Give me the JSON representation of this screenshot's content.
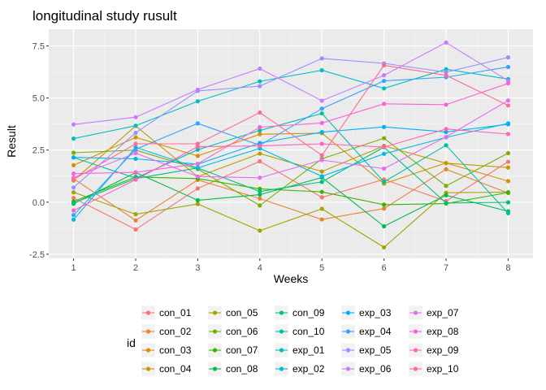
{
  "chart_data": {
    "type": "line",
    "title": "longitudinal study rusult",
    "xlabel": "Weeks",
    "ylabel": "Result",
    "x": [
      1,
      2,
      3,
      4,
      5,
      6,
      7,
      8
    ],
    "x_ticks": [
      "1",
      "2",
      "3",
      "4",
      "5",
      "6",
      "7",
      "8"
    ],
    "xlim": [
      0.6,
      8.4
    ],
    "ylim": [
      -2.7,
      8.3
    ],
    "y_ticks": [
      -2.5,
      0.0,
      2.5,
      5.0,
      7.5
    ],
    "y_tick_labels": [
      "-2.5",
      "0.0",
      "2.5",
      "5.0",
      "7.5"
    ],
    "grid": true,
    "legend": {
      "title": "id",
      "placement": "bottom"
    },
    "series": [
      {
        "name": "con_01",
        "color": "#F8766D",
        "values": [
          0.2,
          -1.31,
          0.66,
          1.96,
          0.23,
          1.09,
          0.05,
          1.94
        ]
      },
      {
        "name": "con_02",
        "color": "#EA8331",
        "values": [
          1.13,
          -0.88,
          1.07,
          0.17,
          -0.83,
          -0.31,
          1.58,
          0.44
        ]
      },
      {
        "name": "con_03",
        "color": "#D89000",
        "values": [
          1.77,
          3.11,
          2.22,
          3.26,
          3.31,
          0.89,
          1.88,
          1.01
        ]
      },
      {
        "name": "con_04",
        "color": "#C09B00",
        "values": [
          1.04,
          3.66,
          1.22,
          2.33,
          1.47,
          2.7,
          1.87,
          1.66
        ]
      },
      {
        "name": "con_05",
        "color": "#A3A500",
        "values": [
          0.47,
          -0.58,
          -0.09,
          -1.37,
          -0.32,
          -2.17,
          0.45,
          0.48
        ]
      },
      {
        "name": "con_06",
        "color": "#7CAE00",
        "values": [
          2.37,
          2.5,
          1.59,
          -0.16,
          2.08,
          3.07,
          0.78,
          2.35
        ]
      },
      {
        "name": "con_07",
        "color": "#39B600",
        "values": [
          0.03,
          1.21,
          1.13,
          0.64,
          0.49,
          -0.12,
          -0.07,
          0.46
        ]
      },
      {
        "name": "con_08",
        "color": "#00BB4E",
        "values": [
          -0.08,
          1.42,
          0.09,
          0.36,
          1.18,
          -1.16,
          0.33,
          -0.44
        ]
      },
      {
        "name": "con_09",
        "color": "#00BF7D",
        "values": [
          -0.04,
          1.13,
          1.64,
          0.51,
          0.97,
          2.64,
          -0.04,
          -0.01
        ]
      },
      {
        "name": "con_10",
        "color": "#00C1A3",
        "values": [
          2.14,
          1.15,
          2.52,
          3.44,
          4.26,
          0.97,
          2.73,
          -0.53
        ]
      },
      {
        "name": "exp_01",
        "color": "#00BFC4",
        "values": [
          3.05,
          3.67,
          4.84,
          5.8,
          6.33,
          5.46,
          6.38,
          5.91
        ]
      },
      {
        "name": "exp_02",
        "color": "#00BAE0",
        "values": [
          -0.84,
          2.63,
          1.64,
          2.58,
          1.24,
          2.32,
          3.11,
          3.78
        ]
      },
      {
        "name": "exp_03",
        "color": "#00B0F6",
        "values": [
          2.15,
          2.08,
          1.82,
          2.84,
          3.36,
          3.61,
          3.37,
          3.74
        ]
      },
      {
        "name": "exp_04",
        "color": "#35A2FF",
        "values": [
          -0.62,
          2.54,
          3.78,
          2.73,
          4.49,
          5.82,
          6.0,
          6.49
        ]
      },
      {
        "name": "exp_05",
        "color": "#9590FF",
        "values": [
          0.7,
          3.33,
          5.34,
          5.57,
          6.9,
          6.66,
          6.24,
          6.95
        ]
      },
      {
        "name": "exp_06",
        "color": "#C77CFF",
        "values": [
          3.73,
          4.08,
          5.4,
          6.41,
          4.87,
          6.09,
          7.66,
          5.83
        ]
      },
      {
        "name": "exp_07",
        "color": "#E76BF3",
        "values": [
          1.18,
          2.35,
          1.23,
          1.17,
          2.02,
          1.61,
          3.13,
          4.88
        ]
      },
      {
        "name": "exp_08",
        "color": "#FA62DB",
        "values": [
          1.37,
          1.43,
          1.84,
          3.6,
          3.8,
          4.72,
          4.68,
          5.7
        ]
      },
      {
        "name": "exp_09",
        "color": "#FF62BC",
        "values": [
          -0.4,
          1.08,
          2.66,
          2.7,
          2.8,
          2.64,
          3.51,
          3.27
        ]
      },
      {
        "name": "exp_10",
        "color": "#FF6C91",
        "values": [
          1.09,
          2.8,
          2.8,
          4.3,
          2.25,
          6.57,
          6.09,
          4.64
        ]
      }
    ]
  }
}
